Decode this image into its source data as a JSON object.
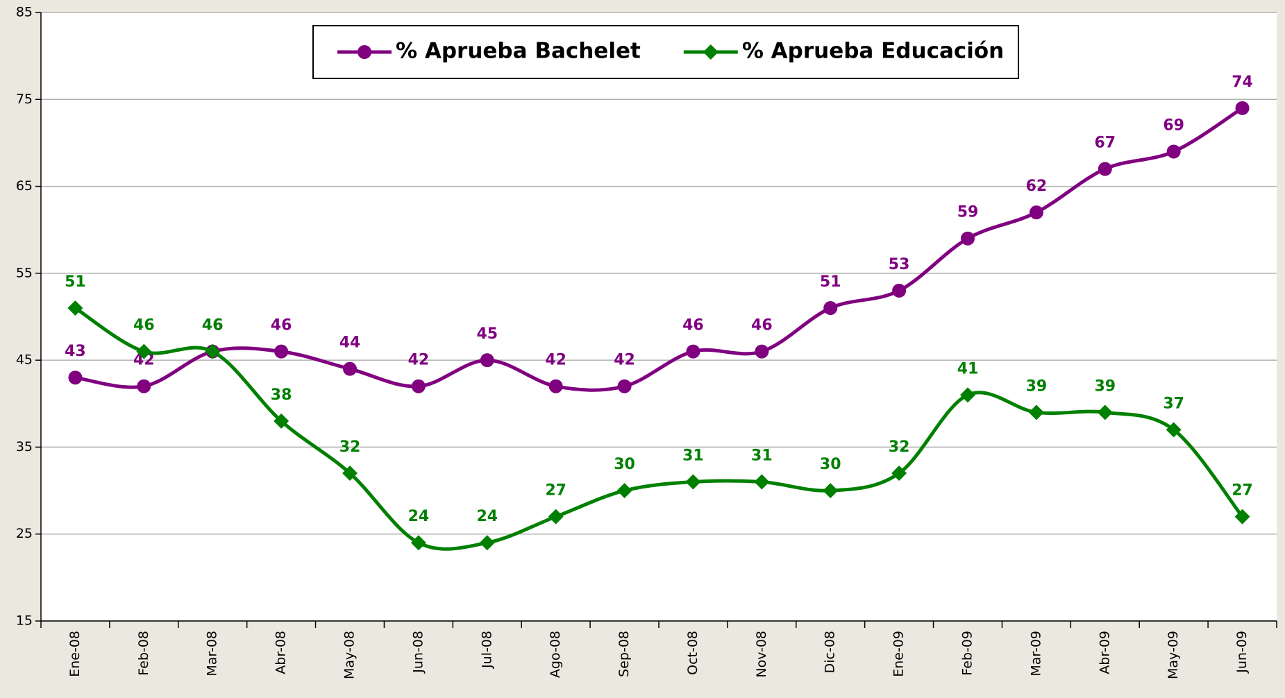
{
  "chart_data": {
    "type": "line",
    "categories": [
      "Ene-08",
      "Feb-08",
      "Mar-08",
      "Abr-08",
      "May-08",
      "Jun-08",
      "Jul-08",
      "Ago-08",
      "Sep-08",
      "Oct-08",
      "Nov-08",
      "Dic-08",
      "Ene-09",
      "Feb-09",
      "Mar-09",
      "Abr-09",
      "May-09",
      "Jun-09"
    ],
    "series": [
      {
        "name": "% Aprueba Bachelet",
        "color": "#800080",
        "marker": "circle",
        "values": [
          43,
          42,
          46,
          46,
          44,
          42,
          45,
          42,
          42,
          46,
          46,
          51,
          53,
          59,
          62,
          67,
          69,
          74
        ]
      },
      {
        "name": "% Aprueba Educación",
        "color": "#008000",
        "marker": "diamond",
        "values": [
          51,
          46,
          46,
          38,
          32,
          24,
          24,
          27,
          30,
          31,
          31,
          30,
          32,
          41,
          39,
          39,
          37,
          27
        ]
      }
    ],
    "ylim": [
      15,
      85
    ],
    "yticks": [
      15,
      25,
      35,
      45,
      55,
      65,
      75,
      85
    ],
    "grid": true,
    "legend": "top"
  }
}
